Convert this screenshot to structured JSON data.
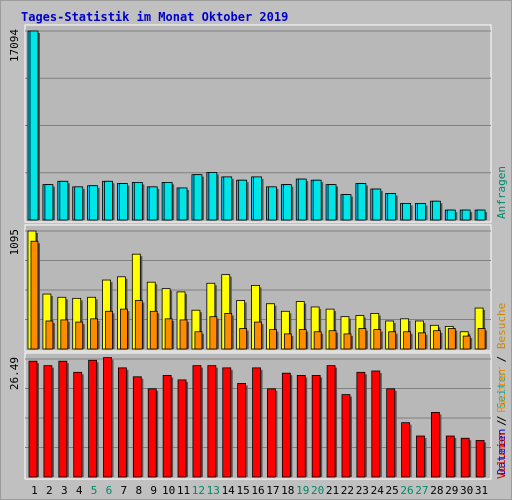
{
  "title": "Tages-Statistik im Monat Oktober 2019",
  "colors": {
    "background": "#c0c0c0",
    "panel": "#b8b8b8",
    "title": "#0000cc",
    "anfragen": "#00ccff",
    "dateien": "#00e5e5",
    "seiten": "#ffff00",
    "besuche": "#ff8c00",
    "volumen": "#ff0000",
    "gridline": "#808080",
    "weekend_label": "#008866",
    "day_label": "#000000"
  },
  "legend": {
    "top": [
      {
        "text": "Anfragen",
        "color": "#008866"
      }
    ],
    "middle": [
      {
        "text": "Dateien",
        "color": "#0000cc"
      },
      {
        "text": " / ",
        "color": "#000000"
      },
      {
        "text": "Seiten",
        "color": "#00aaaa"
      },
      {
        "text": " / ",
        "color": "#000000"
      },
      {
        "text": "Besuche",
        "color": "#cc8800"
      }
    ],
    "bottom": [
      {
        "text": "Volumen",
        "color": "#cc0000"
      },
      {
        "text": " / ",
        "color": "#000000"
      },
      {
        "text": "Rechner",
        "color": "#ff8c00"
      }
    ]
  },
  "weekend_days": [
    5,
    6,
    12,
    13,
    19,
    20,
    26,
    27
  ],
  "chart_data": [
    {
      "type": "bar",
      "panel": "top",
      "ymax_label": "17094",
      "ymax": 17094,
      "categories": [
        "1",
        "2",
        "3",
        "4",
        "5",
        "6",
        "7",
        "8",
        "9",
        "10",
        "11",
        "12",
        "13",
        "14",
        "15",
        "16",
        "17",
        "18",
        "19",
        "20",
        "21",
        "22",
        "23",
        "24",
        "25",
        "26",
        "27",
        "28",
        "29",
        "30",
        "31"
      ],
      "series": [
        {
          "name": "Anfragen",
          "color": "#00ccff",
          "values": [
            17094,
            3200,
            3500,
            3000,
            3100,
            3500,
            3300,
            3400,
            3000,
            3400,
            2900,
            4100,
            4300,
            3900,
            3600,
            3900,
            3000,
            3200,
            3700,
            3600,
            3200,
            2300,
            3300,
            2800,
            2400,
            1500,
            1500,
            1700,
            900,
            900,
            900
          ]
        },
        {
          "name": "Dateien",
          "color": "#00e5e5",
          "values": [
            17094,
            3200,
            3500,
            3000,
            3100,
            3500,
            3300,
            3400,
            3000,
            3400,
            2900,
            4100,
            4300,
            3900,
            3600,
            3900,
            3000,
            3200,
            3700,
            3600,
            3200,
            2300,
            3300,
            2800,
            2400,
            1500,
            1500,
            1700,
            900,
            900,
            900
          ]
        }
      ]
    },
    {
      "type": "bar",
      "panel": "middle",
      "ymax_label": "1095",
      "ymax": 1095,
      "categories": [
        "1",
        "2",
        "3",
        "4",
        "5",
        "6",
        "7",
        "8",
        "9",
        "10",
        "11",
        "12",
        "13",
        "14",
        "15",
        "16",
        "17",
        "18",
        "19",
        "20",
        "21",
        "22",
        "23",
        "24",
        "25",
        "26",
        "27",
        "28",
        "29",
        "30",
        "31"
      ],
      "series": [
        {
          "name": "Seiten",
          "color": "#ffff00",
          "values": [
            1095,
            510,
            480,
            470,
            480,
            640,
            670,
            880,
            620,
            560,
            530,
            360,
            610,
            690,
            450,
            590,
            420,
            350,
            440,
            390,
            370,
            300,
            310,
            330,
            260,
            280,
            260,
            220,
            210,
            160,
            380
          ]
        },
        {
          "name": "Besuche",
          "color": "#ff8c00",
          "values": [
            1000,
            260,
            270,
            250,
            280,
            350,
            370,
            450,
            350,
            280,
            270,
            160,
            300,
            330,
            190,
            250,
            180,
            140,
            180,
            160,
            170,
            140,
            190,
            180,
            160,
            160,
            150,
            170,
            190,
            120,
            190
          ]
        }
      ]
    },
    {
      "type": "bar",
      "panel": "bottom",
      "ymax_label": "26.49",
      "ymax": 26.49,
      "categories": [
        "1",
        "2",
        "3",
        "4",
        "5",
        "6",
        "7",
        "8",
        "9",
        "10",
        "11",
        "12",
        "13",
        "14",
        "15",
        "16",
        "17",
        "18",
        "19",
        "20",
        "21",
        "22",
        "23",
        "24",
        "25",
        "26",
        "27",
        "28",
        "29",
        "30",
        "31"
      ],
      "series": [
        {
          "name": "Volumen",
          "color": "#ff0000",
          "values": [
            26.0,
            25.0,
            26.0,
            23.5,
            26.2,
            26.8,
            24.5,
            22.5,
            19.8,
            22.8,
            21.8,
            25.0,
            25.0,
            24.5,
            21.0,
            24.5,
            19.8,
            23.3,
            22.8,
            22.8,
            25.0,
            18.5,
            23.5,
            23.8,
            19.8,
            12.2,
            9.2,
            14.5,
            9.2,
            8.7,
            8.2
          ]
        }
      ]
    }
  ]
}
